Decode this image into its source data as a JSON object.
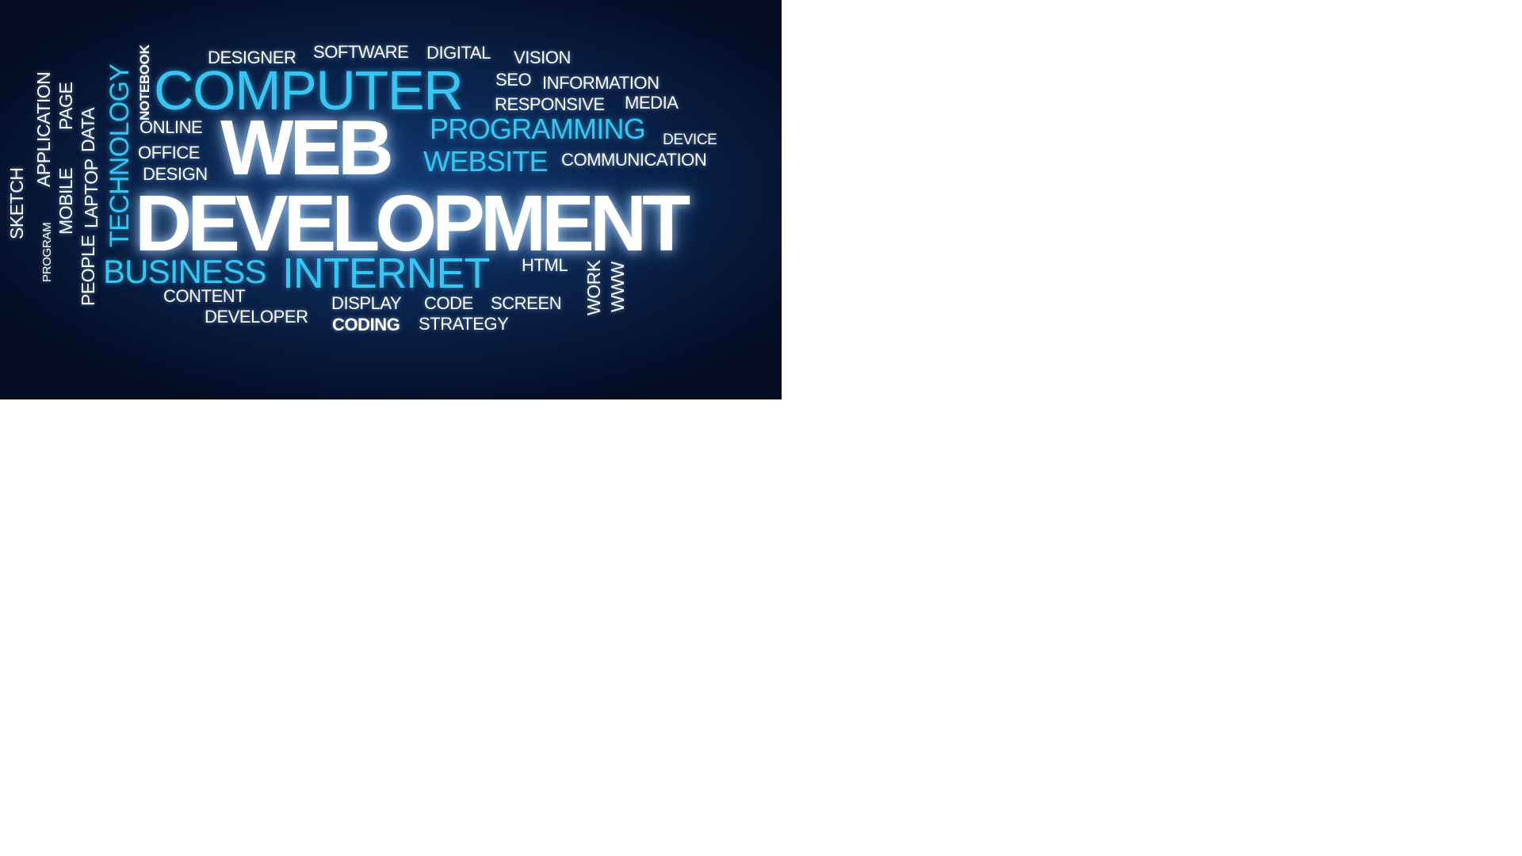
{
  "words": {
    "designer": "DESIGNER",
    "software": "SOFTWARE",
    "digital": "DIGITAL",
    "vision": "VISION",
    "notebook": "NOTEBOOK",
    "computer": "COMPUTER",
    "seo": "SEO",
    "information": "INFORMATION",
    "responsive": "RESPONSIVE",
    "media": "MEDIA",
    "online": "ONLINE",
    "web": "WEB",
    "programming": "PROGRAMMING",
    "device": "DEVICE",
    "office": "OFFICE",
    "website": "WEBSITE",
    "communication": "COMMUNICATION",
    "design": "DESIGN",
    "development": "DEVELOPMENT",
    "application": "APPLICATION",
    "page": "PAGE",
    "technology": "TECHNOLOGY",
    "data": "DATA",
    "laptop": "LAPTOP",
    "mobile": "MOBILE",
    "sketch": "SKETCH",
    "program": "PROGRAM",
    "people": "PEOPLE",
    "business": "BUSINESS",
    "internet": "INTERNET",
    "html": "HTML",
    "work": "WORK",
    "www": "WWW",
    "content": "CONTENT",
    "display": "DISPLAY",
    "code": "CODE",
    "screen": "SCREEN",
    "developer": "DEVELOPER",
    "coding": "CODING",
    "strategy": "STRATEGY"
  },
  "colors": {
    "background_center": "#123a72",
    "background_edge": "#030c22",
    "accent_blue": "#37c6f4",
    "text_white": "#ffffff"
  }
}
